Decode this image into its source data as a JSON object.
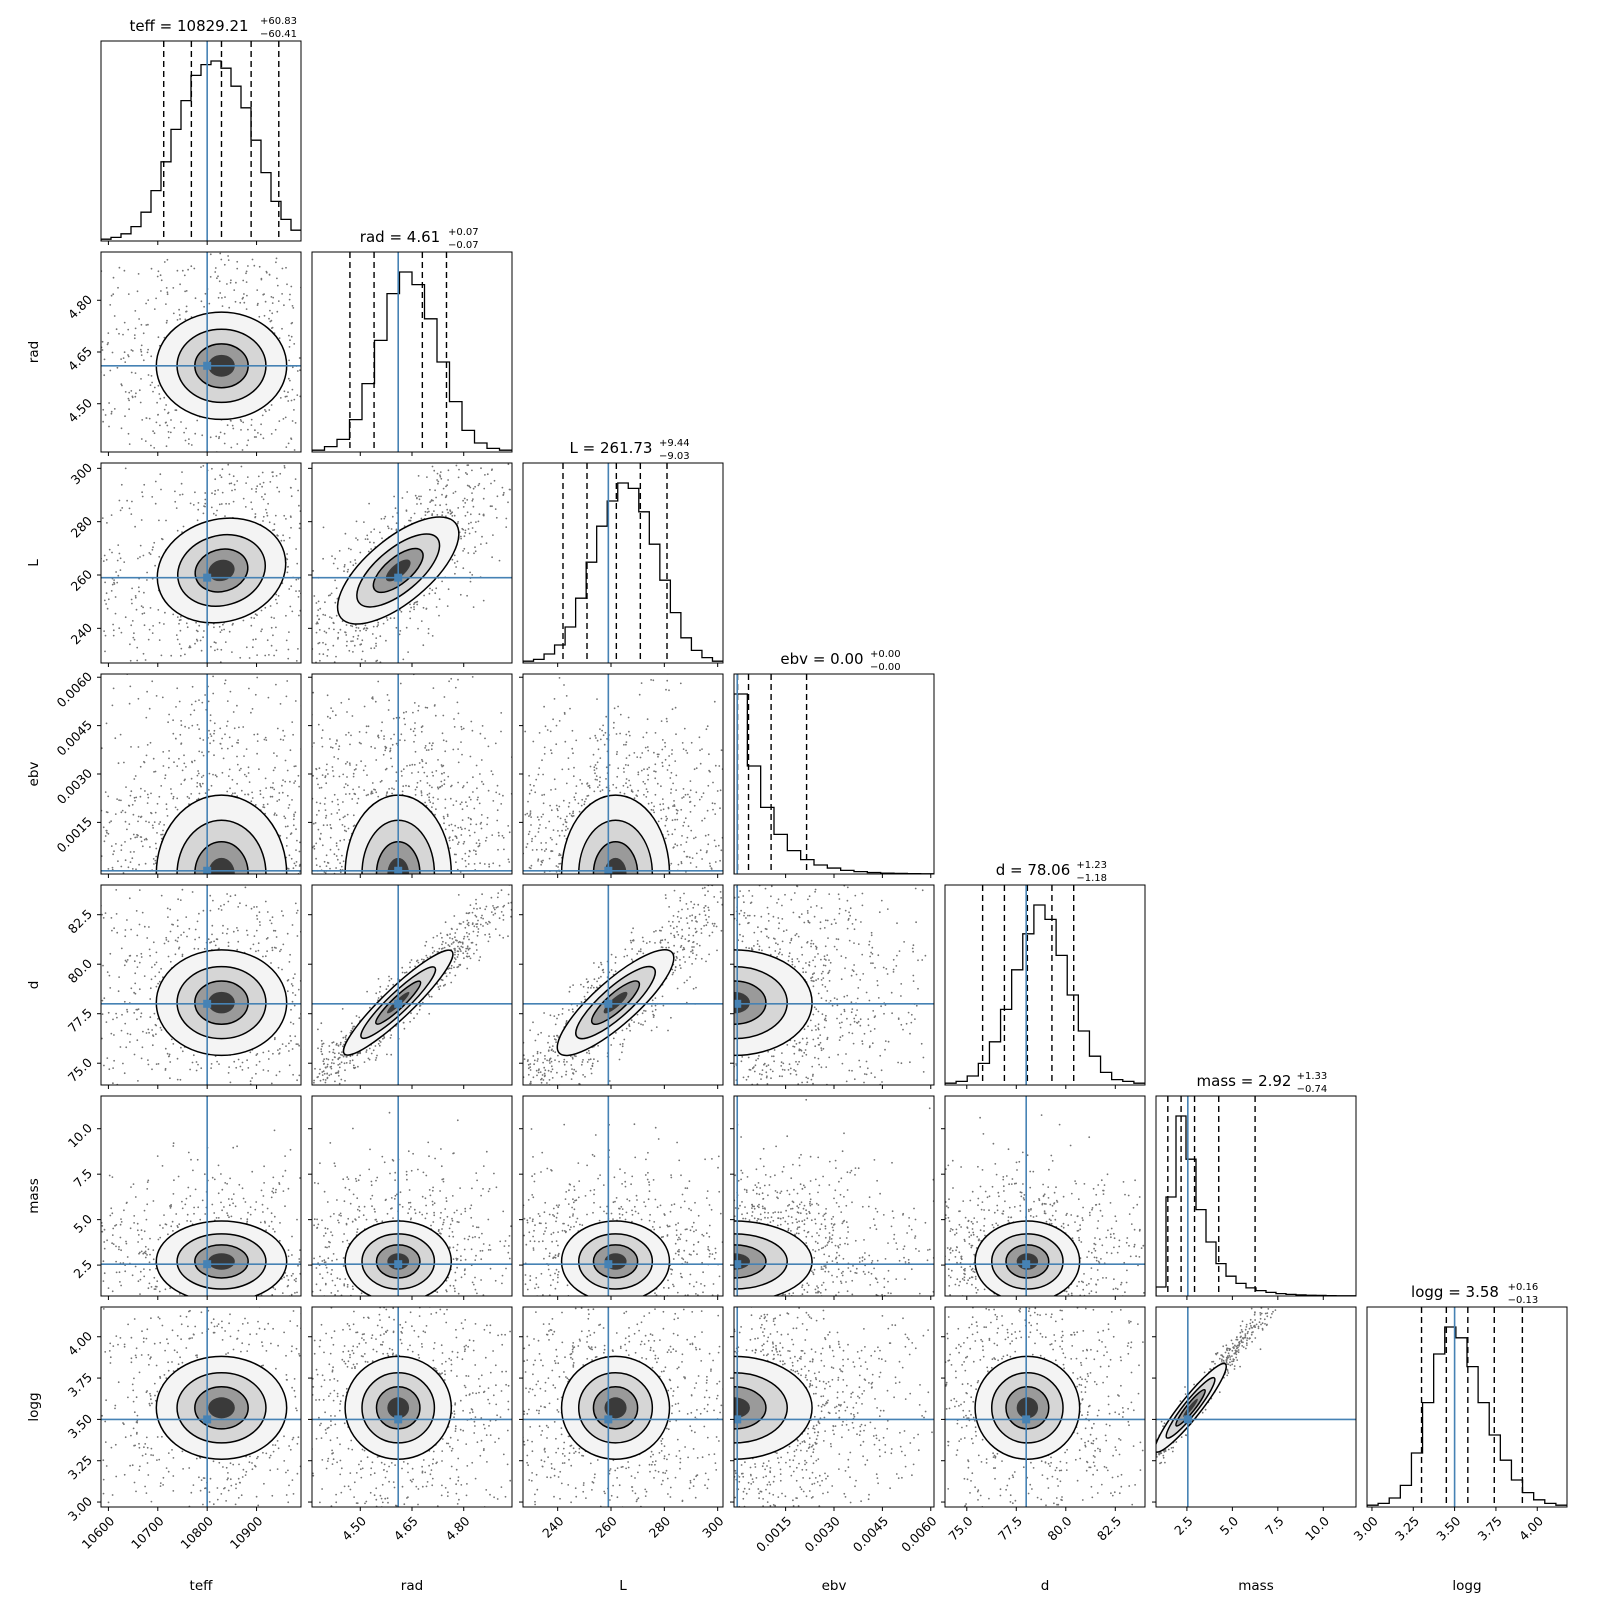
{
  "figure": {
    "type": "corner-plot",
    "accent_color": "#4682b4",
    "truth_line_color": "#4682b4"
  },
  "chart_data": {
    "type": "corner",
    "parameters": [
      {
        "name": "teff",
        "median": 10829.21,
        "err_plus": 60.83,
        "err_minus": 60.41,
        "truth": 10800,
        "title": "teff = 10829.21",
        "title_sup": "+60.83",
        "title_sub": "−60.41",
        "range": [
          10585,
          10990
        ],
        "ticks": [
          10600,
          10700,
          10800,
          10900
        ],
        "tick_labels": [
          "10600",
          "10700",
          "10800",
          "10900"
        ],
        "quantile_lines": [
          10712,
          10768,
          10829,
          10889,
          10945
        ],
        "hist": [
          0.01,
          0.02,
          0.04,
          0.08,
          0.16,
          0.28,
          0.44,
          0.62,
          0.78,
          0.92,
          0.98,
          1.0,
          0.96,
          0.86,
          0.74,
          0.56,
          0.38,
          0.22,
          0.12,
          0.06
        ]
      },
      {
        "name": "rad",
        "median": 4.61,
        "err_plus": 0.07,
        "err_minus": 0.07,
        "truth": 4.61,
        "title": "rad = 4.61",
        "title_sup": "+0.07",
        "title_sub": "−0.07",
        "range": [
          4.36,
          4.94
        ],
        "ticks": [
          4.5,
          4.65,
          4.8
        ],
        "tick_labels": [
          "4.50",
          "4.65",
          "4.80"
        ],
        "quantile_lines": [
          4.47,
          4.54,
          4.61,
          4.68,
          4.75
        ],
        "hist": [
          0.01,
          0.03,
          0.07,
          0.18,
          0.38,
          0.62,
          0.88,
          1.0,
          0.93,
          0.74,
          0.5,
          0.28,
          0.12,
          0.05,
          0.02,
          0.01
        ]
      },
      {
        "name": "L",
        "median": 261.73,
        "err_plus": 9.44,
        "err_minus": 9.03,
        "truth": 259,
        "title": "L = 261.73",
        "title_sup": "+9.44",
        "title_sub": "−9.03",
        "range": [
          227,
          302
        ],
        "ticks": [
          240,
          260,
          280,
          300
        ],
        "tick_labels": [
          "240",
          "260",
          "280",
          "300"
        ],
        "quantile_lines": [
          242,
          251,
          262,
          271,
          281
        ],
        "hist": [
          0.01,
          0.02,
          0.05,
          0.1,
          0.2,
          0.36,
          0.56,
          0.76,
          0.9,
          1.0,
          0.97,
          0.84,
          0.66,
          0.46,
          0.28,
          0.14,
          0.07,
          0.03,
          0.01
        ]
      },
      {
        "name": "ebv",
        "median": 0.0,
        "err_plus": 0.0,
        "err_minus": 0.0,
        "truth": 0.0,
        "title": "ebv = 0.00",
        "title_sup": "+0.00",
        "title_sub": "−0.00",
        "range": [
          -0.0001,
          0.0061
        ],
        "ticks": [
          0.0015,
          0.003,
          0.0045,
          0.006
        ],
        "tick_labels": [
          "0.0015",
          "0.0030",
          "0.0045",
          "0.0060"
        ],
        "quantile_lines": [
          1e-05,
          0.00035,
          0.00105,
          0.00215
        ],
        "hist": [
          1.0,
          0.6,
          0.37,
          0.22,
          0.13,
          0.08,
          0.05,
          0.033,
          0.02,
          0.013,
          0.008,
          0.005,
          0.003,
          0.002,
          0.001
        ]
      },
      {
        "name": "d",
        "median": 78.06,
        "err_plus": 1.23,
        "err_minus": 1.18,
        "truth": 78.0,
        "title": "d = 78.06",
        "title_sup": "+1.23",
        "title_sub": "−1.18",
        "range": [
          73.9,
          84.0
        ],
        "ticks": [
          75.0,
          77.5,
          80.0,
          82.5
        ],
        "tick_labels": [
          "75.0",
          "77.5",
          "80.0",
          "82.5"
        ],
        "quantile_lines": [
          75.8,
          76.9,
          78.06,
          79.3,
          80.4
        ],
        "hist": [
          0.01,
          0.02,
          0.05,
          0.12,
          0.24,
          0.42,
          0.64,
          0.84,
          1.0,
          0.92,
          0.72,
          0.5,
          0.3,
          0.16,
          0.07,
          0.03,
          0.02,
          0.01
        ]
      },
      {
        "name": "mass",
        "median": 2.92,
        "err_plus": 1.33,
        "err_minus": 0.74,
        "truth": 2.55,
        "title": "mass = 2.92",
        "title_sup": "+1.33",
        "title_sub": "−0.74",
        "range": [
          0.8,
          11.8
        ],
        "ticks": [
          2.5,
          5.0,
          7.5,
          10.0
        ],
        "tick_labels": [
          "2.5",
          "5.0",
          "7.5",
          "10.0"
        ],
        "quantile_lines": [
          1.45,
          2.18,
          2.92,
          4.25,
          6.25
        ],
        "hist": [
          0.05,
          0.55,
          1.0,
          0.76,
          0.48,
          0.3,
          0.18,
          0.11,
          0.07,
          0.045,
          0.03,
          0.02,
          0.013,
          0.009,
          0.006,
          0.004,
          0.003,
          0.002,
          0.001,
          0.001
        ]
      },
      {
        "name": "logg",
        "median": 3.58,
        "err_plus": 0.16,
        "err_minus": 0.13,
        "truth": 3.5,
        "title": "logg = 3.58",
        "title_sup": "+0.16",
        "title_sub": "−0.13",
        "range": [
          2.97,
          4.18
        ],
        "ticks": [
          3.0,
          3.25,
          3.5,
          3.75,
          4.0
        ],
        "tick_labels": [
          "3.00",
          "3.25",
          "3.50",
          "3.75",
          "4.00"
        ],
        "quantile_lines": [
          3.3,
          3.45,
          3.58,
          3.74,
          3.91
        ],
        "hist": [
          0.01,
          0.02,
          0.05,
          0.12,
          0.3,
          0.58,
          0.85,
          1.0,
          0.94,
          0.78,
          0.58,
          0.4,
          0.26,
          0.15,
          0.08,
          0.04,
          0.02,
          0.01
        ]
      }
    ]
  }
}
